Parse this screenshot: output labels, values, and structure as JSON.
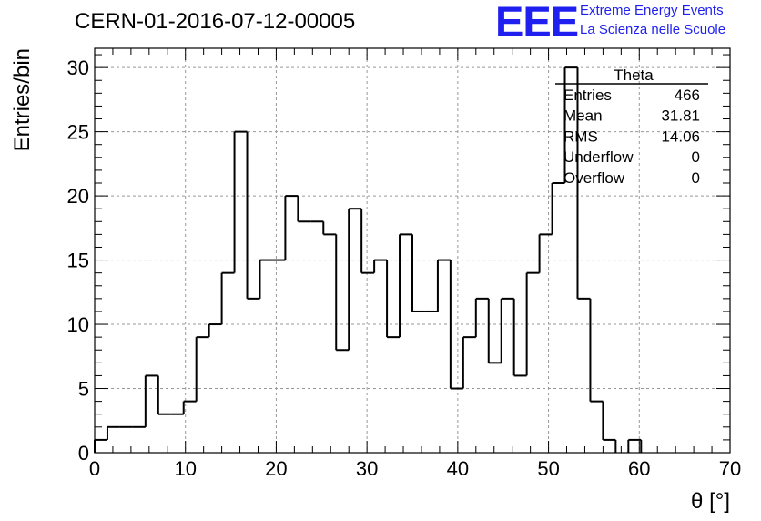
{
  "header": {
    "title": "CERN-01-2016-07-12-00005",
    "logo_text": "EEE",
    "logo_line1": "Extreme Energy Events",
    "logo_line2": "La Scienza nelle Scuole"
  },
  "stats_box": {
    "title": "Theta",
    "rows": [
      {
        "label": "Entries",
        "value": "466"
      },
      {
        "label": "Mean",
        "value": "31.81"
      },
      {
        "label": "RMS",
        "value": "14.06"
      },
      {
        "label": "Underflow",
        "value": "0"
      },
      {
        "label": "Overflow",
        "value": "0"
      }
    ]
  },
  "chart_data": {
    "type": "histogram",
    "title": "CERN-01-2016-07-12-00005",
    "xlabel": "θ [°]",
    "ylabel": "Entries/bin",
    "xlim": [
      0,
      70
    ],
    "ylim": [
      0,
      31.5
    ],
    "bin_width": 1.4,
    "xticks": [
      0,
      10,
      20,
      30,
      40,
      50,
      60,
      70
    ],
    "yticks": [
      0,
      5,
      10,
      15,
      20,
      25,
      30
    ],
    "grid": true,
    "line_color": "#000000",
    "values": [
      1,
      2,
      2,
      2,
      6,
      3,
      3,
      4,
      9,
      10,
      14,
      25,
      12,
      15,
      15,
      20,
      18,
      18,
      17,
      8,
      19,
      14,
      15,
      9,
      17,
      11,
      11,
      15,
      5,
      9,
      12,
      7,
      12,
      6,
      14,
      17,
      21,
      30,
      12,
      4,
      1,
      0,
      1,
      0,
      0,
      0,
      0,
      0,
      0,
      0
    ]
  }
}
